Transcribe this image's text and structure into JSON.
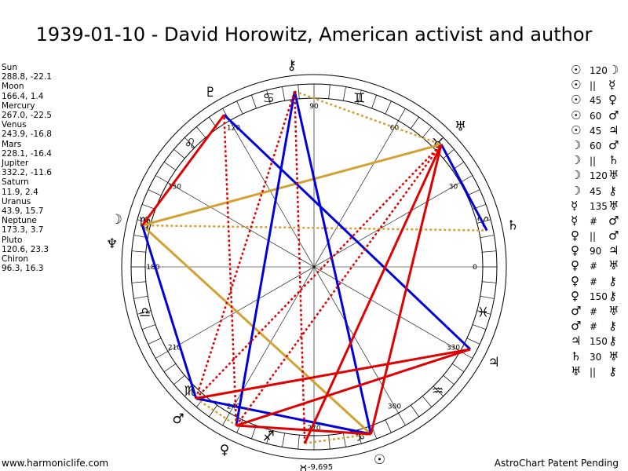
{
  "title": "1939-01-10 - David Horowitz, American activist and author",
  "positions": [
    {
      "name": "Sun",
      "lon": 288.8,
      "lat": -22.1,
      "text": "288.8, -22.1"
    },
    {
      "name": "Moon",
      "lon": 166.4,
      "lat": 1.4,
      "text": "166.4, 1.4"
    },
    {
      "name": "Mercury",
      "lon": 267.0,
      "lat": -22.5,
      "text": "267.0, -22.5"
    },
    {
      "name": "Venus",
      "lon": 243.9,
      "lat": -16.8,
      "text": "243.9, -16.8"
    },
    {
      "name": "Mars",
      "lon": 228.1,
      "lat": -16.4,
      "text": "228.1, -16.4"
    },
    {
      "name": "Jupiter",
      "lon": 332.2,
      "lat": -11.6,
      "text": "332.2, -11.6"
    },
    {
      "name": "Saturn",
      "lon": 11.9,
      "lat": 2.4,
      "text": "11.9, 2.4"
    },
    {
      "name": "Uranus",
      "lon": 43.9,
      "lat": 15.7,
      "text": "43.9, 15.7"
    },
    {
      "name": "Neptune",
      "lon": 173.3,
      "lat": 3.7,
      "text": "173.3, 3.7"
    },
    {
      "name": "Pluto",
      "lon": 120.6,
      "lat": 23.3,
      "text": "120.6, 23.3"
    },
    {
      "name": "Chiron",
      "lon": 96.3,
      "lat": 16.3,
      "text": "96.3, 16.3"
    }
  ],
  "aspects": [
    {
      "a": "☉",
      "sym": "120",
      "b": "☽"
    },
    {
      "a": "☉",
      "sym": "||",
      "b": "☿"
    },
    {
      "a": "☉",
      "sym": "45",
      "b": "♀"
    },
    {
      "a": "☉",
      "sym": "60",
      "b": "♂"
    },
    {
      "a": "☉",
      "sym": "45",
      "b": "♃"
    },
    {
      "a": "☽",
      "sym": "60",
      "b": "♂"
    },
    {
      "a": "☽",
      "sym": "||",
      "b": "♄"
    },
    {
      "a": "☽",
      "sym": "120",
      "b": "♅"
    },
    {
      "a": "☽",
      "sym": "45",
      "b": "⚷"
    },
    {
      "a": "☿",
      "sym": "135",
      "b": "♅"
    },
    {
      "a": "☿",
      "sym": "#",
      "b": "♂"
    },
    {
      "a": "♀",
      "sym": "||",
      "b": "♂"
    },
    {
      "a": "♀",
      "sym": "90",
      "b": "♃"
    },
    {
      "a": "♀",
      "sym": "#",
      "b": "♅"
    },
    {
      "a": "♀",
      "sym": "#",
      "b": "⚷"
    },
    {
      "a": "♀",
      "sym": "150",
      "b": "⚷"
    },
    {
      "a": "♂",
      "sym": "#",
      "b": "♅"
    },
    {
      "a": "♂",
      "sym": "#",
      "b": "⚷"
    },
    {
      "a": "♃",
      "sym": "150",
      "b": "⚷"
    },
    {
      "a": "♄",
      "sym": "30",
      "b": "♅"
    },
    {
      "a": "♅",
      "sym": "||",
      "b": "⚷"
    }
  ],
  "wheel": {
    "degree_labels": [
      "0",
      "30",
      "60",
      "90",
      "120",
      "150",
      "180",
      "210",
      "240",
      "270",
      "300",
      "330"
    ],
    "extra_label": "-9,695",
    "signs": [
      {
        "name": "aries",
        "glyph": "♈",
        "lon": 15
      },
      {
        "name": "taurus",
        "glyph": "♉",
        "lon": 45
      },
      {
        "name": "gemini",
        "glyph": "♊",
        "lon": 75
      },
      {
        "name": "cancer",
        "glyph": "♋",
        "lon": 105
      },
      {
        "name": "leo",
        "glyph": "♌",
        "lon": 135
      },
      {
        "name": "virgo",
        "glyph": "♍",
        "lon": 165
      },
      {
        "name": "libra",
        "glyph": "♎",
        "lon": 195
      },
      {
        "name": "scorpio",
        "glyph": "♏",
        "lon": 225
      },
      {
        "name": "sagittarius",
        "glyph": "♐",
        "lon": 255
      },
      {
        "name": "capricorn",
        "glyph": "♑",
        "lon": 285
      },
      {
        "name": "aquarius",
        "glyph": "♒",
        "lon": 315
      },
      {
        "name": "pisces",
        "glyph": "♓",
        "lon": 345
      }
    ],
    "planets": [
      {
        "name": "sun",
        "glyph": "☉",
        "lon": 288.8
      },
      {
        "name": "moon",
        "glyph": "☽",
        "lon": 166.4
      },
      {
        "name": "mercury",
        "glyph": "☿",
        "lon": 267.0
      },
      {
        "name": "venus",
        "glyph": "♀",
        "lon": 243.9
      },
      {
        "name": "mars",
        "glyph": "♂",
        "lon": 228.1
      },
      {
        "name": "jupiter",
        "glyph": "♃",
        "lon": 332.2
      },
      {
        "name": "saturn",
        "glyph": "♄",
        "lon": 11.9
      },
      {
        "name": "uranus",
        "glyph": "♅",
        "lon": 43.9
      },
      {
        "name": "neptune",
        "glyph": "♆",
        "lon": 173.3
      },
      {
        "name": "pluto",
        "glyph": "♇",
        "lon": 120.6
      },
      {
        "name": "chiron",
        "glyph": "⚷",
        "lon": 96.3
      }
    ],
    "lines": [
      {
        "from": 288.8,
        "to": 166.4,
        "color": "#d4a030",
        "style": "solid"
      },
      {
        "from": 166.4,
        "to": 43.9,
        "color": "#d4a030",
        "style": "solid"
      },
      {
        "from": 166.4,
        "to": 11.9,
        "color": "#d4a030",
        "style": "dotted"
      },
      {
        "from": 96.3,
        "to": 43.9,
        "color": "#d4a030",
        "style": "dotted"
      },
      {
        "from": 228.1,
        "to": 243.9,
        "color": "#d4a030",
        "style": "dotted"
      },
      {
        "from": 267.0,
        "to": 288.8,
        "color": "#d4a030",
        "style": "dotted"
      },
      {
        "from": 288.8,
        "to": 228.1,
        "color": "#0000dd",
        "style": "solid"
      },
      {
        "from": 288.8,
        "to": 96.3,
        "color": "#0000dd",
        "style": "solid"
      },
      {
        "from": 166.4,
        "to": 228.1,
        "color": "#0000dd",
        "style": "solid"
      },
      {
        "from": 243.9,
        "to": 96.3,
        "color": "#0000dd",
        "style": "solid"
      },
      {
        "from": 120.6,
        "to": 332.2,
        "color": "#0000dd",
        "style": "solid"
      },
      {
        "from": 43.9,
        "to": 11.9,
        "color": "#0000dd",
        "style": "solid"
      },
      {
        "from": 166.4,
        "to": 120.6,
        "color": "#e00000",
        "style": "solid"
      },
      {
        "from": 243.9,
        "to": 332.2,
        "color": "#e00000",
        "style": "solid"
      },
      {
        "from": 228.1,
        "to": 332.2,
        "color": "#e00000",
        "style": "solid"
      },
      {
        "from": 288.8,
        "to": 43.9,
        "color": "#e00000",
        "style": "solid"
      },
      {
        "from": 288.8,
        "to": 243.9,
        "color": "#e00000",
        "style": "solid"
      },
      {
        "from": 267.0,
        "to": 43.9,
        "color": "#e00000",
        "style": "solid"
      },
      {
        "from": 243.9,
        "to": 43.9,
        "color": "#e00000",
        "style": "dotted"
      },
      {
        "from": 228.1,
        "to": 96.3,
        "color": "#e00000",
        "style": "dotted"
      },
      {
        "from": 243.9,
        "to": 120.6,
        "color": "#e00000",
        "style": "dotted"
      },
      {
        "from": 267.0,
        "to": 96.3,
        "color": "#e00000",
        "style": "dotted"
      },
      {
        "from": 228.1,
        "to": 43.9,
        "color": "#e00000",
        "style": "dotted"
      }
    ]
  },
  "footer": {
    "left": "www.harmoniclife.com",
    "right": "AstroChart Patent Pending"
  }
}
